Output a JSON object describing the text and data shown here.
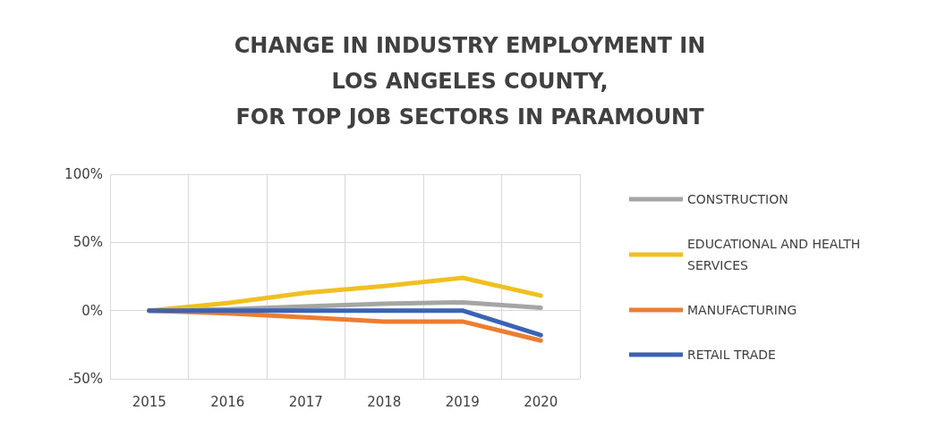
{
  "chart_data": {
    "type": "line",
    "title": "CHANGE IN INDUSTRY EMPLOYMENT IN\nLOS ANGELES COUNTY,\nFOR TOP JOB SECTORS IN PARAMOUNT",
    "categories": [
      "2015",
      "2016",
      "2017",
      "2018",
      "2019",
      "2020"
    ],
    "series": [
      {
        "name": "CONSTRUCTION",
        "color": "#a5a5a5",
        "values": [
          0,
          1,
          3,
          5,
          6,
          2
        ]
      },
      {
        "name": "EDUCATIONAL AND HEALTH SERVICES",
        "color": "#f0c020",
        "values": [
          0,
          5.5,
          13,
          18,
          24,
          11
        ]
      },
      {
        "name": "MANUFACTURING",
        "color": "#ed7d31",
        "values": [
          0,
          -2,
          -5,
          -8,
          -8,
          -22
        ]
      },
      {
        "name": "RETAIL TRADE",
        "color": "#3a62b5",
        "values": [
          0,
          0,
          0,
          0,
          0,
          -18
        ]
      }
    ],
    "ylim": [
      -50,
      100
    ],
    "yticks": [
      {
        "value": -50,
        "label": "-50%"
      },
      {
        "value": 0,
        "label": "0%"
      },
      {
        "value": 50,
        "label": "50%"
      },
      {
        "value": 100,
        "label": "100%"
      }
    ],
    "grid": true,
    "legend": "right",
    "marker": "none",
    "line_style": "solid"
  }
}
